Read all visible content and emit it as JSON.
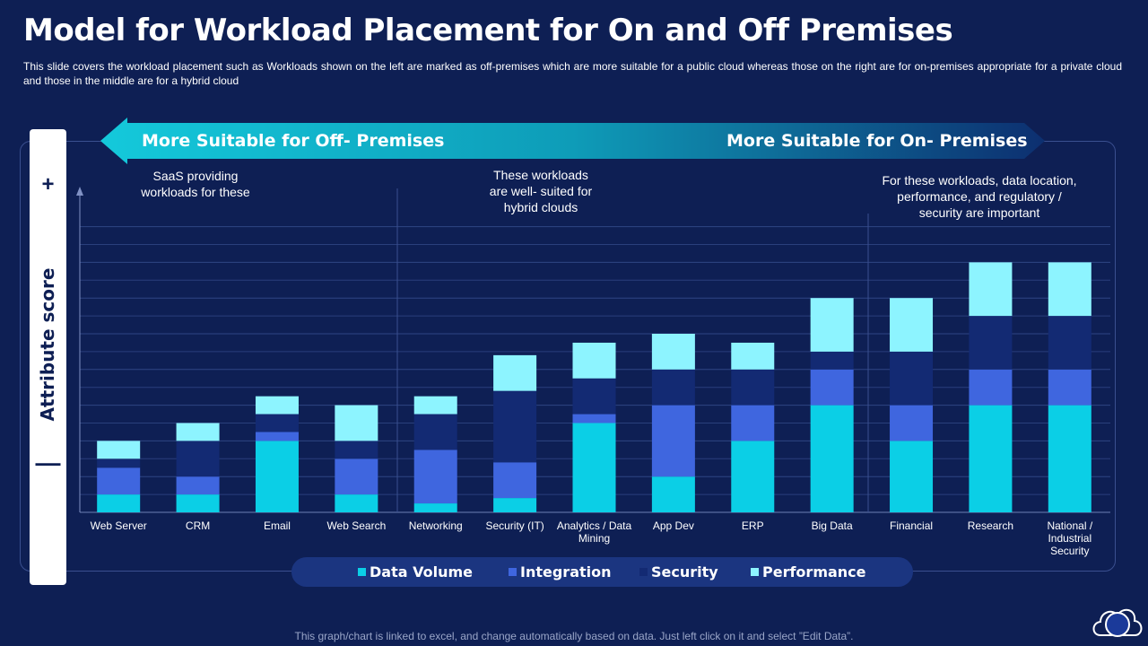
{
  "slide": {
    "title": "Model for Workload Placement for On and Off Premises",
    "subtitle": "This slide covers the workload placement such as Workloads shown on the left are marked as off-premises which are more suitable for a public cloud whereas those on the right are for on-premises appropriate for a private  cloud and those in the middle are for a hybrid cloud",
    "footnote": "This graph/chart is linked to excel, and change automatically based on data. Just left click on it and select ”Edit Data”."
  },
  "arrow": {
    "left_label": "More Suitable for Off- Premises",
    "right_label": "More Suitable for On- Premises"
  },
  "score_axis": {
    "label": "Attribute score",
    "plus": "+",
    "minus": "—"
  },
  "annotations": {
    "left": [
      "SaaS providing",
      "workloads for these"
    ],
    "middle": [
      "These workloads",
      "are well- suited for",
      "hybrid clouds"
    ],
    "right": [
      "For these workloads, data location,",
      "performance, and regulatory /",
      "security are important"
    ]
  },
  "colors": {
    "background": "#0e1f54",
    "data_volume": "#0bcfe6",
    "integration": "#3f66df",
    "security": "#132a73",
    "performance": "#8df4ff"
  },
  "chart_data": {
    "type": "bar",
    "stacked": true,
    "categories": [
      "Web Server",
      "CRM",
      "Email",
      "Web Search",
      "Networking",
      "Security (IT)",
      "Analytics / Data Mining",
      "App Dev",
      "ERP",
      "Big Data",
      "Financial",
      "Research",
      "National / Industrial Security"
    ],
    "series": [
      {
        "name": "Data Volume",
        "values": [
          1,
          1,
          4,
          1,
          0.5,
          0.8,
          5,
          2,
          4,
          6,
          4,
          6,
          6
        ]
      },
      {
        "name": "Integration",
        "values": [
          1.5,
          1,
          0.5,
          2,
          3,
          2,
          0.5,
          4,
          2,
          2,
          2,
          2,
          2
        ]
      },
      {
        "name": "Security",
        "values": [
          0.5,
          2,
          1,
          1,
          2,
          4,
          2,
          2,
          2,
          1,
          3,
          3,
          3
        ]
      },
      {
        "name": "Performance",
        "values": [
          1,
          1,
          1,
          2,
          1,
          2,
          2,
          2,
          1.5,
          3,
          3,
          3,
          3
        ]
      }
    ],
    "ylim": [
      0,
      16
    ],
    "grid": true,
    "legend_position": "bottom"
  },
  "legend": {
    "items": [
      "Data Volume",
      "Integration",
      "Security",
      "Performance"
    ]
  }
}
